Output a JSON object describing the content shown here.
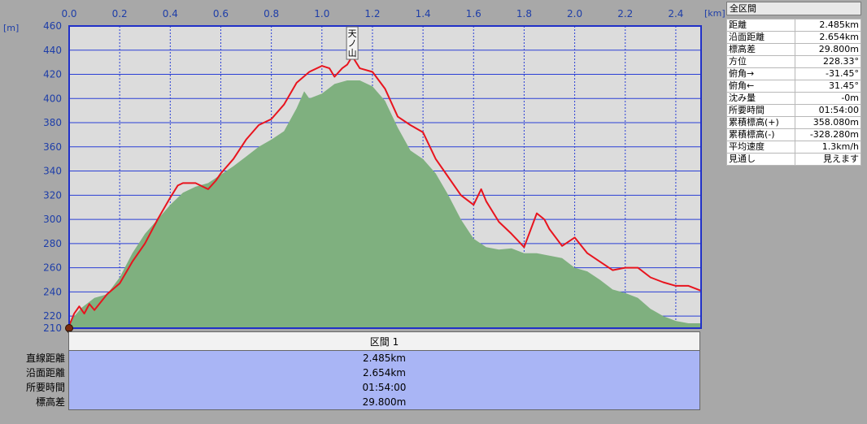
{
  "chart_data": {
    "type": "area",
    "xlabel": "[km]",
    "ylabel": "[m]",
    "xlim": [
      0.0,
      2.5
    ],
    "ylim": [
      210,
      460
    ],
    "x_ticks": [
      "0.0",
      "0.2",
      "0.4",
      "0.6",
      "0.8",
      "1.0",
      "1.2",
      "1.4",
      "1.6",
      "1.8",
      "2.0",
      "2.2",
      "2.4"
    ],
    "y_ticks": [
      "460",
      "440",
      "420",
      "400",
      "380",
      "360",
      "340",
      "320",
      "300",
      "280",
      "260",
      "240",
      "220",
      "210"
    ],
    "grid": true,
    "annotations": [
      {
        "text": "天ノ山",
        "x": 1.12
      }
    ],
    "series": [
      {
        "name": "",
        "color": "#7fb07f",
        "kind": "area",
        "x": [
          0.0,
          0.05,
          0.1,
          0.15,
          0.2,
          0.25,
          0.3,
          0.35,
          0.4,
          0.45,
          0.5,
          0.55,
          0.6,
          0.65,
          0.7,
          0.75,
          0.8,
          0.85,
          0.9,
          0.93,
          0.95,
          1.0,
          1.05,
          1.1,
          1.15,
          1.2,
          1.25,
          1.3,
          1.35,
          1.4,
          1.45,
          1.5,
          1.55,
          1.6,
          1.65,
          1.7,
          1.75,
          1.8,
          1.85,
          1.9,
          1.95,
          2.0,
          2.05,
          2.1,
          2.15,
          2.2,
          2.25,
          2.3,
          2.35,
          2.4,
          2.45,
          2.5
        ],
        "values": [
          215,
          227,
          235,
          238,
          252,
          272,
          288,
          300,
          312,
          322,
          327,
          330,
          337,
          344,
          352,
          360,
          366,
          373,
          392,
          406,
          400,
          404,
          412,
          415,
          415,
          410,
          398,
          376,
          357,
          350,
          338,
          320,
          300,
          284,
          277,
          275,
          276,
          272,
          272,
          270,
          268,
          260,
          257,
          250,
          242,
          239,
          235,
          226,
          220,
          216,
          214,
          214
        ]
      },
      {
        "name": "",
        "color": "#e8141e",
        "kind": "line",
        "x": [
          0.0,
          0.02,
          0.04,
          0.06,
          0.08,
          0.1,
          0.15,
          0.2,
          0.25,
          0.3,
          0.35,
          0.4,
          0.43,
          0.45,
          0.5,
          0.55,
          0.58,
          0.6,
          0.65,
          0.7,
          0.75,
          0.8,
          0.85,
          0.9,
          0.95,
          1.0,
          1.03,
          1.05,
          1.08,
          1.1,
          1.12,
          1.15,
          1.2,
          1.25,
          1.3,
          1.35,
          1.4,
          1.45,
          1.5,
          1.55,
          1.6,
          1.63,
          1.65,
          1.7,
          1.75,
          1.8,
          1.85,
          1.88,
          1.9,
          1.95,
          2.0,
          2.05,
          2.1,
          2.15,
          2.2,
          2.25,
          2.3,
          2.35,
          2.4,
          2.45,
          2.5
        ],
        "values": [
          212,
          222,
          228,
          222,
          230,
          225,
          238,
          247,
          265,
          280,
          300,
          318,
          328,
          330,
          330,
          325,
          332,
          338,
          350,
          366,
          378,
          383,
          395,
          413,
          422,
          427,
          425,
          418,
          425,
          428,
          435,
          425,
          422,
          408,
          385,
          378,
          372,
          350,
          335,
          320,
          312,
          325,
          315,
          298,
          288,
          277,
          305,
          300,
          292,
          278,
          285,
          272,
          265,
          258,
          260,
          260,
          252,
          248,
          245,
          245,
          241
        ]
      }
    ]
  },
  "stats_panel": {
    "header": "全区間",
    "rows": [
      {
        "label": "距離",
        "value": "2.485km"
      },
      {
        "label": "沿面距離",
        "value": "2.654km"
      },
      {
        "label": "標高差",
        "value": "29.800m"
      },
      {
        "label": "方位",
        "value": "228.33°"
      },
      {
        "label": "俯角→",
        "value": "-31.45°"
      },
      {
        "label": "俯角←",
        "value": "31.45°"
      },
      {
        "label": "沈み量",
        "value": "-0m"
      },
      {
        "label": "所要時間",
        "value": "01:54:00"
      },
      {
        "label": "累積標高(+)",
        "value": "358.080m"
      },
      {
        "label": "累積標高(-)",
        "value": "-328.280m"
      },
      {
        "label": "平均速度",
        "value": "1.3km/h"
      },
      {
        "label": "見通し",
        "value": "見えます"
      }
    ]
  },
  "section_table": {
    "title": "区間 1",
    "rows": [
      {
        "label": "直線距離",
        "value": "2.485km"
      },
      {
        "label": "沿面距離",
        "value": "2.654km"
      },
      {
        "label": "所要時間",
        "value": "01:54:00"
      },
      {
        "label": "標高差",
        "value": "29.800m"
      }
    ]
  },
  "colors": {
    "plot_bg": "#dcdcdc",
    "grid": "#2a3fd6",
    "frame": "#2030c8",
    "terrain": "#7fb07f",
    "route": "#e8141e"
  },
  "icons": [
    "start-marker-icon"
  ]
}
